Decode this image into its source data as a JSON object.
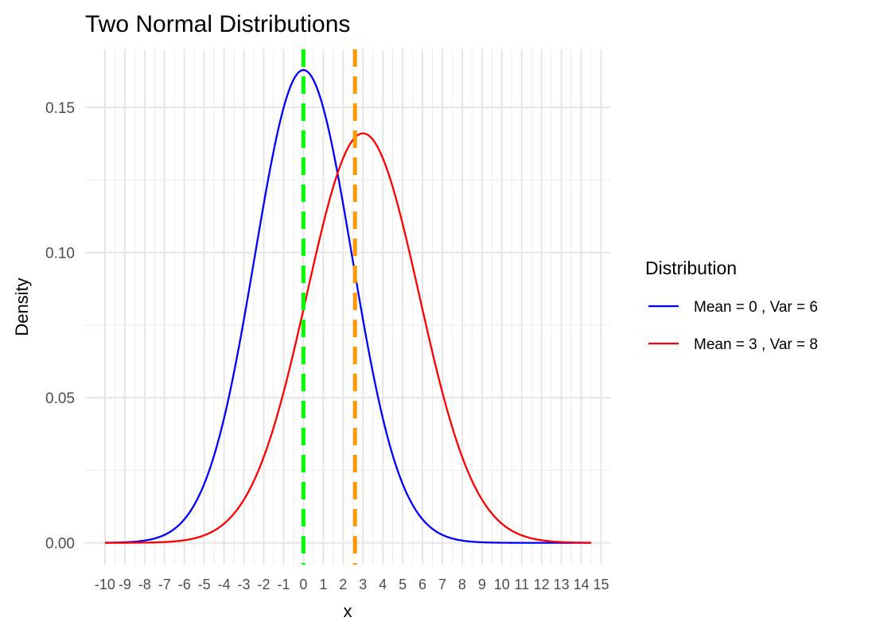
{
  "chart_data": {
    "type": "line",
    "title": "Two Normal Distributions",
    "xlabel": "x",
    "ylabel": "Density",
    "xlim": [
      -11,
      15.5
    ],
    "ylim": [
      -0.0075,
      0.17
    ],
    "x_ticks": [
      -10,
      -9,
      -8,
      -7,
      -6,
      -5,
      -4,
      -3,
      -2,
      -1,
      0,
      1,
      2,
      3,
      4,
      5,
      6,
      7,
      8,
      9,
      10,
      11,
      12,
      13,
      14,
      15
    ],
    "x_tick_labels": [
      "-10",
      "-9",
      "-8",
      "-7",
      "-6",
      "-5",
      "-4",
      "-3",
      "-2",
      "-1",
      "0",
      "1",
      "2",
      "3",
      "4",
      "5",
      "6",
      "7",
      "8",
      "9",
      "10",
      "11",
      "12",
      "13",
      "14",
      "15"
    ],
    "y_ticks": [
      0,
      0.05,
      0.1,
      0.15
    ],
    "y_tick_labels": [
      "0.00",
      "0.05",
      "0.10",
      "0.15"
    ],
    "grid": true,
    "legend": {
      "title": "Distribution",
      "position": "right"
    },
    "x_range": [
      -10,
      14.5
    ],
    "series": [
      {
        "name": "Mean = 0 , Var = 6",
        "distribution": "normal",
        "mean": 0,
        "variance": 6,
        "color": "#0000ff"
      },
      {
        "name": "Mean = 3 , Var = 8",
        "distribution": "normal",
        "mean": 3,
        "variance": 8,
        "color": "#ff0000"
      }
    ],
    "vlines": [
      {
        "x": 0,
        "color": "#00ff00",
        "style": "dashed"
      },
      {
        "x": 2.6,
        "color": "#ff9900",
        "style": "dashed"
      }
    ]
  }
}
